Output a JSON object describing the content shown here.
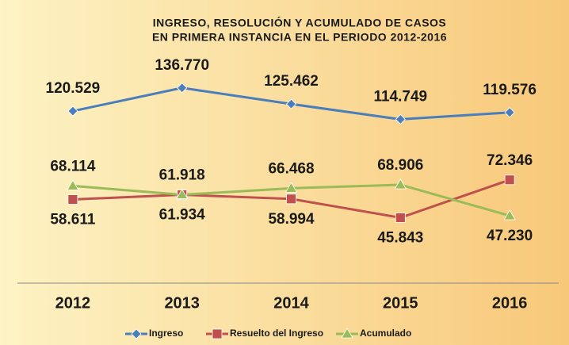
{
  "chart_data": {
    "type": "line",
    "title": "INGRESO, RESOLUCIÓN Y ACUMULADO DE CASOS",
    "subtitle": "EN PRIMERA INSTANCIA  EN EL PERIODO 2012-2016",
    "categories": [
      "2012",
      "2013",
      "2014",
      "2015",
      "2016"
    ],
    "ylim": [
      0,
      160000
    ],
    "series": [
      {
        "name": "Ingreso",
        "color": "#4a7ebb",
        "values": [
          120529,
          136770,
          125462,
          114749,
          119576
        ],
        "value_labels": [
          "120.529",
          "136.770",
          "125.462",
          "114.749",
          "119.576"
        ]
      },
      {
        "name": "Resuelto del Ingreso",
        "color": "#c0504d",
        "values": [
          58611,
          61934,
          58994,
          45843,
          72346
        ],
        "value_labels": [
          "58.611",
          "61.934",
          "58.994",
          "45.843",
          "72.346"
        ]
      },
      {
        "name": "Acumulado",
        "color": "#9bbb59",
        "values": [
          68114,
          61918,
          66468,
          68906,
          47230
        ],
        "value_labels": [
          "68.114",
          "61.918",
          "66.468",
          "68.906",
          "47.230"
        ]
      }
    ],
    "legend": "bottom"
  }
}
